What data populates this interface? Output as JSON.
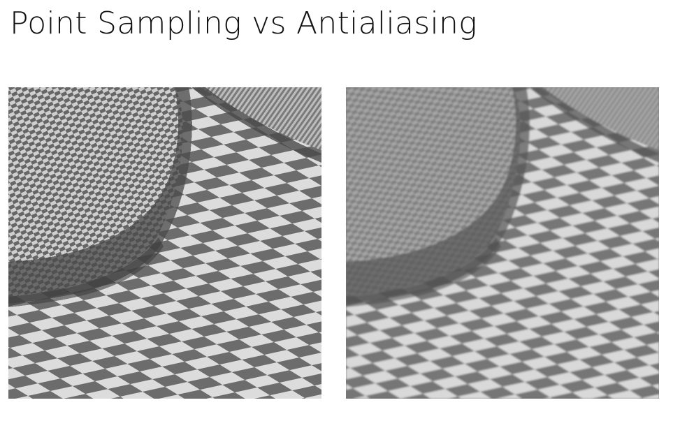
{
  "slide": {
    "title": "Point Sampling vs Antialiasing"
  },
  "images": [
    {
      "id": "point-sampling",
      "rendering": "point-sampled (aliased)",
      "colors": {
        "light": "#dcdcdc",
        "dark": "#6c6c6c",
        "tube_shadow": "#3e3e3e"
      }
    },
    {
      "id": "antialiasing",
      "rendering": "antialiased (smooth)",
      "colors": {
        "light": "#d9d9d9",
        "dark": "#767676",
        "tube_shadow": "#4a4a4a"
      }
    }
  ]
}
